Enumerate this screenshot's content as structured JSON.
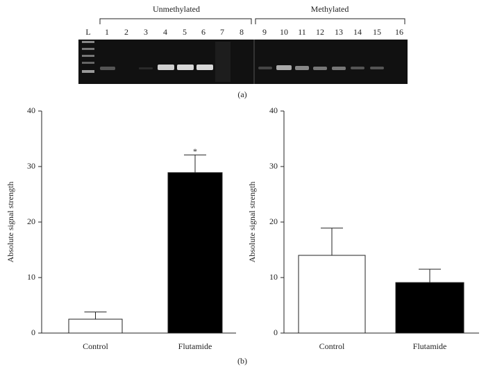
{
  "gel": {
    "groups": [
      "Unmethylated",
      "Methylated"
    ],
    "lanes": [
      "L",
      "1",
      "2",
      "3",
      "4",
      "5",
      "6",
      "7",
      "8",
      "9",
      "10",
      "11",
      "12",
      "13",
      "14",
      "15",
      "16"
    ],
    "caption": "(a)"
  },
  "caption_b": "(b)",
  "chart_data": [
    {
      "type": "bar",
      "ylabel": "Absolute signal strength",
      "categories": [
        "Control",
        "Flutamide"
      ],
      "values": [
        2.5,
        28.9
      ],
      "errors": [
        1.3,
        3.2
      ],
      "colors": [
        "#ffffff",
        "#000000"
      ],
      "annotations": [
        {
          "label": "*",
          "category": "Flutamide"
        }
      ],
      "ylim": [
        0,
        40
      ],
      "yticks": [
        0,
        10,
        20,
        30,
        40
      ],
      "grid": false
    },
    {
      "type": "bar",
      "ylabel": "Absolute signal strength",
      "categories": [
        "Control",
        "Flutamide"
      ],
      "values": [
        14.0,
        9.1
      ],
      "errors": [
        4.9,
        2.4
      ],
      "colors": [
        "#ffffff",
        "#000000"
      ],
      "ylim": [
        0,
        40
      ],
      "yticks": [
        0,
        10,
        20,
        30,
        40
      ],
      "grid": false
    }
  ]
}
